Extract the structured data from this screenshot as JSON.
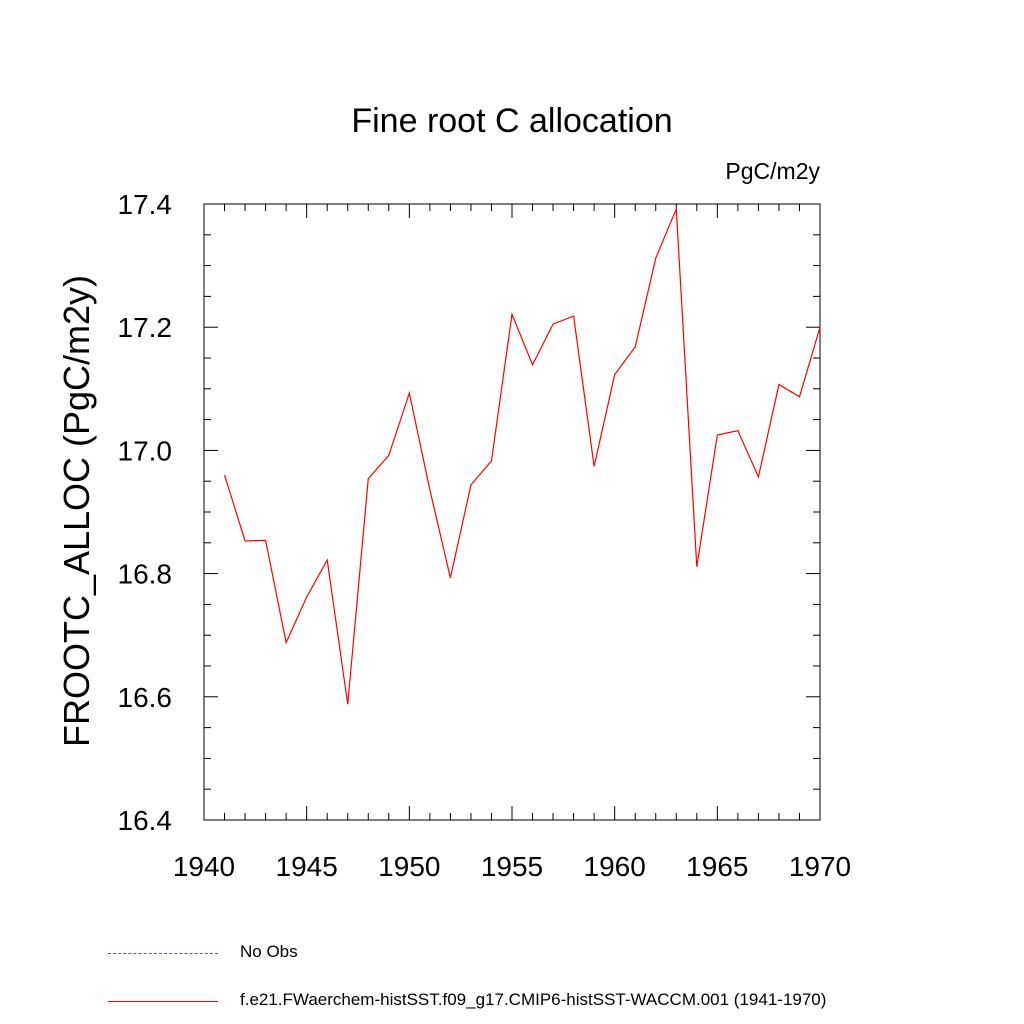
{
  "colors": {
    "series": "#ff0000",
    "obs": "#5a4fb0",
    "axis": "#000000"
  },
  "chart_data": {
    "type": "line",
    "title": "Fine root C allocation",
    "units_label": "PgC/m2y",
    "ylabel": "FROOTC_ALLOC  (PgC/m2y)",
    "xlabel": "",
    "xlim": [
      1940,
      1970
    ],
    "ylim": [
      16.4,
      17.4
    ],
    "x_ticks": [
      1940,
      1945,
      1950,
      1955,
      1960,
      1965,
      1970
    ],
    "y_ticks": [
      "16.4",
      "16.6",
      "16.8",
      "17.0",
      "17.2",
      "17.4"
    ],
    "grid": false,
    "legend_position": "bottom-left",
    "series": [
      {
        "name": "f.e21.FWaerchem-histSST.f09_g17.CMIP6-histSST-WACCM.001 (1941-1970)",
        "color": "#ff0000",
        "x": [
          1941,
          1942,
          1943,
          1944,
          1945,
          1946,
          1947,
          1948,
          1949,
          1950,
          1951,
          1952,
          1953,
          1954,
          1955,
          1956,
          1957,
          1958,
          1959,
          1960,
          1961,
          1962,
          1963,
          1964,
          1965,
          1966,
          1967,
          1968,
          1969,
          1970
        ],
        "values": [
          16.96,
          16.853,
          16.854,
          16.688,
          16.762,
          16.822,
          16.588,
          16.954,
          16.992,
          17.093,
          16.936,
          16.793,
          16.944,
          16.983,
          17.221,
          17.139,
          17.205,
          17.218,
          16.974,
          17.123,
          17.168,
          17.312,
          17.392,
          16.811,
          17.025,
          17.032,
          16.957,
          17.107,
          17.087,
          17.2
        ]
      }
    ],
    "legend": [
      {
        "label": "No Obs",
        "style": "dashed"
      },
      {
        "label": "f.e21.FWaerchem-histSST.f09_g17.CMIP6-histSST-WACCM.001 (1941-1970)",
        "style": "solid"
      }
    ]
  }
}
